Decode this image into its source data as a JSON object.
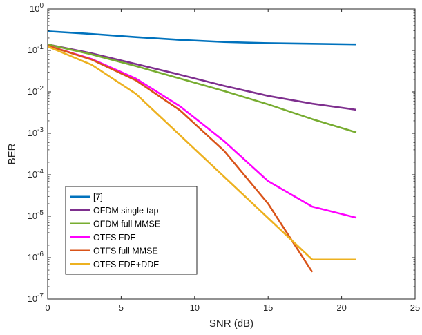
{
  "chart_data": {
    "type": "line",
    "xlabel": "SNR (dB)",
    "ylabel": "BER",
    "xlim": [
      0,
      25
    ],
    "ylim_exponents": [
      -7,
      0
    ],
    "yscale": "log",
    "grid": false,
    "legend_position": "lower-left",
    "x_ticks": [
      "0",
      "5",
      "10",
      "15",
      "20",
      "25"
    ],
    "y_ticks": [
      {
        "base": "10",
        "exp": "-7"
      },
      {
        "base": "10",
        "exp": "-6"
      },
      {
        "base": "10",
        "exp": "-5"
      },
      {
        "base": "10",
        "exp": "-4"
      },
      {
        "base": "10",
        "exp": "-3"
      },
      {
        "base": "10",
        "exp": "-2"
      },
      {
        "base": "10",
        "exp": "-1"
      },
      {
        "base": "10",
        "exp": "0"
      }
    ],
    "series": [
      {
        "name": "[7]",
        "color": "#0072BD",
        "x": [
          0,
          3,
          6,
          9,
          12,
          15,
          18,
          21
        ],
        "y": [
          0.29,
          0.25,
          0.21,
          0.18,
          0.16,
          0.15,
          0.145,
          0.14
        ]
      },
      {
        "name": "OFDM single-tap",
        "color": "#7E2F8E",
        "x": [
          0,
          3,
          6,
          9,
          12,
          15,
          18,
          21
        ],
        "y": [
          0.14,
          0.085,
          0.047,
          0.026,
          0.014,
          0.008,
          0.0052,
          0.0037
        ]
      },
      {
        "name": "OFDM full MMSE",
        "color": "#77AC30",
        "x": [
          0,
          3,
          6,
          9,
          12,
          15,
          18,
          21
        ],
        "y": [
          0.14,
          0.08,
          0.042,
          0.021,
          0.0105,
          0.005,
          0.0022,
          0.00105
        ]
      },
      {
        "name": "OTFS FDE",
        "color": "#FF00FF",
        "x": [
          0,
          3,
          6,
          9,
          12,
          15,
          18,
          21
        ],
        "y": [
          0.13,
          0.062,
          0.021,
          0.0045,
          0.00065,
          7e-05,
          1.7e-05,
          9.2e-06
        ]
      },
      {
        "name": "OTFS full MMSE",
        "color": "#D95319",
        "x": [
          0,
          3,
          6,
          9,
          12,
          15,
          18
        ],
        "y": [
          0.13,
          0.06,
          0.019,
          0.0036,
          0.00038,
          2e-05,
          4.5e-07
        ]
      },
      {
        "name": "OTFS FDE+DDE",
        "color": "#EDB120",
        "x": [
          0,
          3,
          6,
          9,
          12,
          15,
          18,
          21
        ],
        "y": [
          0.125,
          0.045,
          0.009,
          0.0009,
          9e-05,
          9e-06,
          9e-07,
          9e-07
        ]
      }
    ]
  }
}
